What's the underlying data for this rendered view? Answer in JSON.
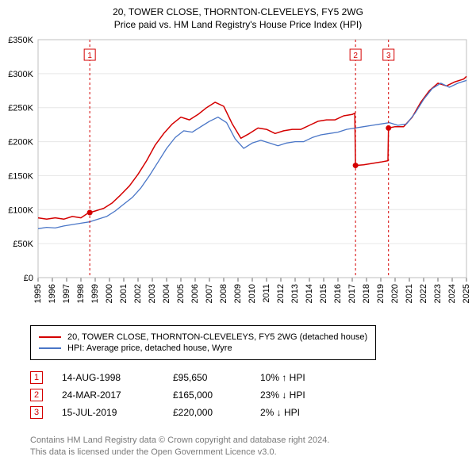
{
  "titles": {
    "line1": "20, TOWER CLOSE, THORNTON-CLEVELEYS, FY5 2WG",
    "line2": "Price paid vs. HM Land Registry's House Price Index (HPI)"
  },
  "chart": {
    "type": "line",
    "background_color": "#ffffff",
    "plot_border_color": "#bfbfbf",
    "grid_color": "#e6e6e6",
    "tick_color": "#666666",
    "axis_label_color": "#000000",
    "axis_fontsize": 11,
    "xlim": [
      1995,
      2025
    ],
    "x_ticks": [
      1995,
      1996,
      1997,
      1998,
      1999,
      2000,
      2001,
      2002,
      2003,
      2004,
      2005,
      2006,
      2007,
      2008,
      2009,
      2010,
      2011,
      2012,
      2013,
      2014,
      2015,
      2016,
      2017,
      2018,
      2019,
      2020,
      2021,
      2022,
      2023,
      2024,
      2025
    ],
    "x_tick_rotate_deg": -90,
    "ylim": [
      0,
      350000
    ],
    "y_ticks": [
      0,
      50000,
      100000,
      150000,
      200000,
      250000,
      300000,
      350000
    ],
    "y_tick_labels": [
      "£0",
      "£50K",
      "£100K",
      "£150K",
      "£200K",
      "£250K",
      "£300K",
      "£350K"
    ],
    "series": [
      {
        "key": "price_paid",
        "label": "20, TOWER CLOSE, THORNTON-CLEVELEYS, FY5 2WG (detached house)",
        "color": "#d40000",
        "line_width": 1.5,
        "points": [
          [
            1995.0,
            88000
          ],
          [
            1995.6,
            86000
          ],
          [
            1996.2,
            88000
          ],
          [
            1996.8,
            86000
          ],
          [
            1997.4,
            90000
          ],
          [
            1998.0,
            88000
          ],
          [
            1998.5,
            95000
          ],
          [
            1998.62,
            95650
          ],
          [
            1999.0,
            98000
          ],
          [
            1999.6,
            102000
          ],
          [
            2000.2,
            110000
          ],
          [
            2000.8,
            122000
          ],
          [
            2001.4,
            135000
          ],
          [
            2002.0,
            152000
          ],
          [
            2002.6,
            172000
          ],
          [
            2003.2,
            195000
          ],
          [
            2003.8,
            212000
          ],
          [
            2004.4,
            226000
          ],
          [
            2005.0,
            236000
          ],
          [
            2005.6,
            232000
          ],
          [
            2006.2,
            240000
          ],
          [
            2006.8,
            250000
          ],
          [
            2007.4,
            258000
          ],
          [
            2008.0,
            252000
          ],
          [
            2008.6,
            226000
          ],
          [
            2009.2,
            205000
          ],
          [
            2009.8,
            212000
          ],
          [
            2010.4,
            220000
          ],
          [
            2011.0,
            218000
          ],
          [
            2011.6,
            212000
          ],
          [
            2012.2,
            216000
          ],
          [
            2012.8,
            218000
          ],
          [
            2013.4,
            218000
          ],
          [
            2014.0,
            224000
          ],
          [
            2014.6,
            230000
          ],
          [
            2015.2,
            232000
          ],
          [
            2015.8,
            232000
          ],
          [
            2016.4,
            238000
          ],
          [
            2017.0,
            240000
          ],
          [
            2017.18,
            242000
          ],
          [
            2017.23,
            165000
          ],
          [
            2017.8,
            166000
          ],
          [
            2018.4,
            168000
          ],
          [
            2019.0,
            170000
          ],
          [
            2019.5,
            172000
          ],
          [
            2019.54,
            220000
          ],
          [
            2020.0,
            222000
          ],
          [
            2020.6,
            222000
          ],
          [
            2021.2,
            236000
          ],
          [
            2021.8,
            258000
          ],
          [
            2022.4,
            275000
          ],
          [
            2023.0,
            286000
          ],
          [
            2023.6,
            282000
          ],
          [
            2024.2,
            288000
          ],
          [
            2024.8,
            292000
          ],
          [
            2025.0,
            296000
          ]
        ]
      },
      {
        "key": "hpi",
        "label": "HPI: Average price, detached house, Wyre",
        "color": "#4a76c7",
        "line_width": 1.3,
        "points": [
          [
            1995.0,
            72000
          ],
          [
            1995.6,
            74000
          ],
          [
            1996.2,
            73000
          ],
          [
            1996.8,
            76000
          ],
          [
            1997.4,
            78000
          ],
          [
            1998.0,
            80000
          ],
          [
            1998.6,
            82000
          ],
          [
            1999.2,
            86000
          ],
          [
            1999.8,
            90000
          ],
          [
            2000.4,
            98000
          ],
          [
            2001.0,
            108000
          ],
          [
            2001.6,
            118000
          ],
          [
            2002.2,
            132000
          ],
          [
            2002.8,
            150000
          ],
          [
            2003.4,
            170000
          ],
          [
            2004.0,
            190000
          ],
          [
            2004.6,
            206000
          ],
          [
            2005.2,
            216000
          ],
          [
            2005.8,
            214000
          ],
          [
            2006.4,
            222000
          ],
          [
            2007.0,
            230000
          ],
          [
            2007.6,
            236000
          ],
          [
            2008.2,
            228000
          ],
          [
            2008.8,
            204000
          ],
          [
            2009.4,
            190000
          ],
          [
            2010.0,
            198000
          ],
          [
            2010.6,
            202000
          ],
          [
            2011.2,
            198000
          ],
          [
            2011.8,
            194000
          ],
          [
            2012.4,
            198000
          ],
          [
            2013.0,
            200000
          ],
          [
            2013.6,
            200000
          ],
          [
            2014.2,
            206000
          ],
          [
            2014.8,
            210000
          ],
          [
            2015.4,
            212000
          ],
          [
            2016.0,
            214000
          ],
          [
            2016.6,
            218000
          ],
          [
            2017.2,
            220000
          ],
          [
            2017.8,
            222000
          ],
          [
            2018.4,
            224000
          ],
          [
            2019.0,
            226000
          ],
          [
            2019.6,
            228000
          ],
          [
            2020.2,
            224000
          ],
          [
            2020.8,
            226000
          ],
          [
            2021.4,
            242000
          ],
          [
            2022.0,
            262000
          ],
          [
            2022.6,
            278000
          ],
          [
            2023.2,
            286000
          ],
          [
            2023.8,
            280000
          ],
          [
            2024.4,
            286000
          ],
          [
            2025.0,
            290000
          ]
        ]
      }
    ],
    "event_markers": [
      {
        "n": 1,
        "x": 1998.62,
        "y": 95650,
        "color": "#d40000"
      },
      {
        "n": 2,
        "x": 2017.23,
        "y": 165000,
        "color": "#d40000"
      },
      {
        "n": 3,
        "x": 2019.54,
        "y": 220000,
        "color": "#d40000"
      }
    ],
    "event_dash": "3,3",
    "event_dot_radius": 3.5,
    "event_label_box": {
      "border_color": "#d40000",
      "text_color": "#d40000",
      "width": 14,
      "height": 14,
      "y_offset": 12,
      "fontsize": 10
    }
  },
  "legend": {
    "items": [
      {
        "color": "#d40000",
        "label": "20, TOWER CLOSE, THORNTON-CLEVELEYS, FY5 2WG (detached house)"
      },
      {
        "color": "#4a76c7",
        "label": "HPI: Average price, detached house, Wyre"
      }
    ]
  },
  "events": [
    {
      "n": "1",
      "date": "14-AUG-1998",
      "price": "£95,650",
      "delta": "10% ↑ HPI",
      "box_color": "#d40000"
    },
    {
      "n": "2",
      "date": "24-MAR-2017",
      "price": "£165,000",
      "delta": "23% ↓ HPI",
      "box_color": "#d40000"
    },
    {
      "n": "3",
      "date": "15-JUL-2019",
      "price": "£220,000",
      "delta": "2% ↓ HPI",
      "box_color": "#d40000"
    }
  ],
  "attribution": {
    "line1": "Contains HM Land Registry data © Crown copyright and database right 2024.",
    "line2": "This data is licensed under the Open Government Licence v3.0."
  }
}
